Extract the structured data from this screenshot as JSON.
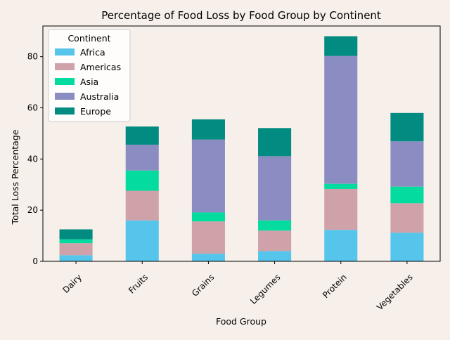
{
  "chart_data": {
    "type": "bar",
    "stacked": true,
    "title": "Percentage of Food Loss by Food Group by Continent",
    "xlabel": "Food Group",
    "ylabel": "Total Loss Percentage",
    "categories": [
      "Dairy",
      "Fruits",
      "Grains",
      "Legumes",
      "Protein",
      "Vegetables"
    ],
    "series": [
      {
        "name": "Africa",
        "color": "#56c5ec",
        "values": [
          2.4,
          16.0,
          3.0,
          4.0,
          12.3,
          11.2
        ]
      },
      {
        "name": "Americas",
        "color": "#cfa2aa",
        "values": [
          4.7,
          11.6,
          12.6,
          8.0,
          16.0,
          11.5
        ]
      },
      {
        "name": "Asia",
        "color": "#03db9f",
        "values": [
          1.5,
          7.9,
          3.5,
          4.0,
          2.0,
          6.5
        ]
      },
      {
        "name": "Australia",
        "color": "#8b8dc2",
        "values": [
          0.0,
          10.1,
          28.5,
          25.1,
          50.0,
          17.7
        ]
      },
      {
        "name": "Europe",
        "color": "#028b80",
        "values": [
          3.9,
          7.1,
          7.9,
          11.0,
          7.7,
          11.1
        ]
      }
    ],
    "ylim": [
      0,
      92
    ],
    "yticks": [
      0,
      20,
      40,
      60,
      80
    ],
    "legend": {
      "title": "Continent",
      "placement": "top-left"
    },
    "grid": false
  }
}
